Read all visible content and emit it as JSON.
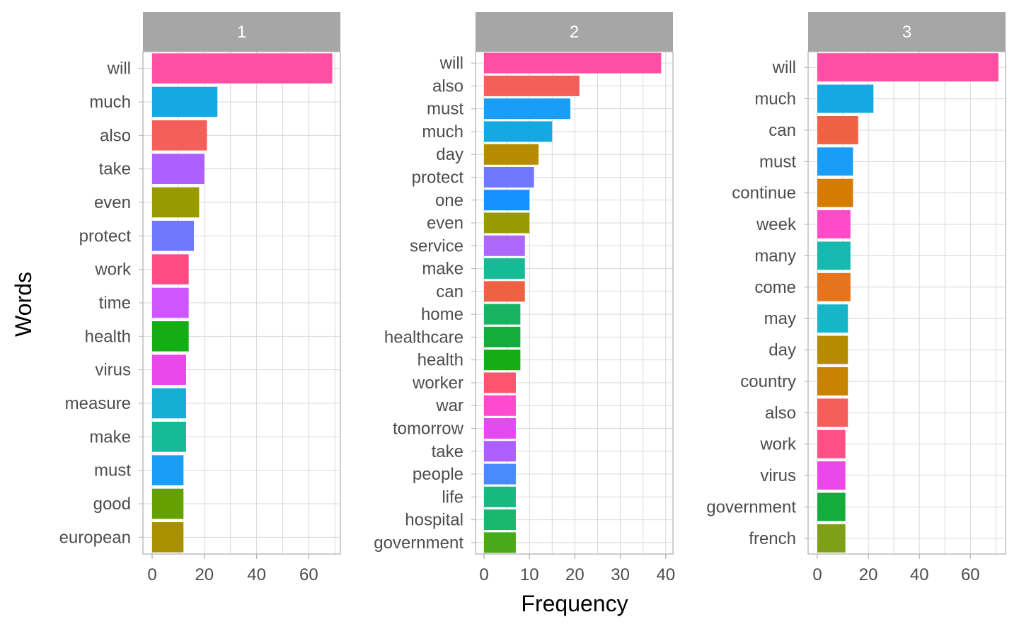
{
  "chart_data": [
    {
      "type": "bar",
      "orientation": "horizontal",
      "panel": "1",
      "categories": [
        "will",
        "much",
        "also",
        "take",
        "even",
        "protect",
        "work",
        "time",
        "health",
        "virus",
        "measure",
        "make",
        "must",
        "good",
        "european"
      ],
      "values": [
        69,
        25,
        21,
        20,
        18,
        16,
        14,
        14,
        14,
        13,
        13,
        13,
        12,
        12,
        12
      ],
      "colors": [
        "#FF4FA4",
        "#15A8E2",
        "#F45F5B",
        "#AE5FFF",
        "#999900",
        "#7078FF",
        "#FE4B84",
        "#CE55FF",
        "#14AD14",
        "#EB46E8",
        "#14AFD2",
        "#16BA97",
        "#1A9EF5",
        "#64A100",
        "#A89000"
      ],
      "xlim": [
        0,
        72
      ],
      "xticks": [
        0,
        20,
        40,
        60
      ]
    },
    {
      "type": "bar",
      "orientation": "horizontal",
      "panel": "2",
      "categories": [
        "will",
        "also",
        "must",
        "much",
        "day",
        "protect",
        "one",
        "even",
        "service",
        "make",
        "can",
        "home",
        "healthcare",
        "health",
        "worker",
        "war",
        "tomorrow",
        "take",
        "people",
        "life",
        "hospital",
        "government"
      ],
      "values": [
        39,
        21,
        19,
        15,
        12,
        11,
        10,
        10,
        9,
        9,
        9,
        8,
        8,
        8,
        7,
        7,
        7,
        7,
        7,
        7,
        7,
        7
      ],
      "colors": [
        "#FF4FA4",
        "#F45F5B",
        "#1A9EF5",
        "#15A8E2",
        "#B58B00",
        "#7078FF",
        "#1490FF",
        "#999900",
        "#AE68F9",
        "#16BA97",
        "#EE6243",
        "#18B464",
        "#14AD3C",
        "#14AD14",
        "#FF5471",
        "#FF4ACF",
        "#E54AF0",
        "#AE5FFF",
        "#4A8AFF",
        "#16BA80",
        "#1AB86F",
        "#4AA819"
      ],
      "xlim": [
        0,
        41
      ],
      "xticks": [
        0,
        10,
        20,
        30,
        40
      ]
    },
    {
      "type": "bar",
      "orientation": "horizontal",
      "panel": "3",
      "categories": [
        "will",
        "much",
        "can",
        "must",
        "continue",
        "week",
        "many",
        "come",
        "may",
        "day",
        "country",
        "also",
        "work",
        "virus",
        "government",
        "french"
      ],
      "values": [
        71,
        22,
        16,
        14,
        14,
        13,
        13,
        13,
        12,
        12,
        12,
        12,
        11,
        11,
        11,
        11
      ],
      "colors": [
        "#FF4FA4",
        "#15A8E2",
        "#EE6243",
        "#1A9EF5",
        "#D47B00",
        "#FF4BC8",
        "#16B8AF",
        "#E6731E",
        "#16B6C8",
        "#B58B00",
        "#C88300",
        "#F45F5B",
        "#FF4F87",
        "#EB46E8",
        "#14AD3C",
        "#7EA019"
      ],
      "xlim": [
        0,
        74
      ],
      "xticks": [
        0,
        20,
        40,
        60
      ]
    }
  ],
  "axes": {
    "xlabel": "Frequency",
    "ylabel": "Words"
  },
  "colors": {
    "strip": "#A6A6A6",
    "grid": "#D9D9D9",
    "border": "#B3B3B3",
    "text": "#4D4D4D"
  }
}
